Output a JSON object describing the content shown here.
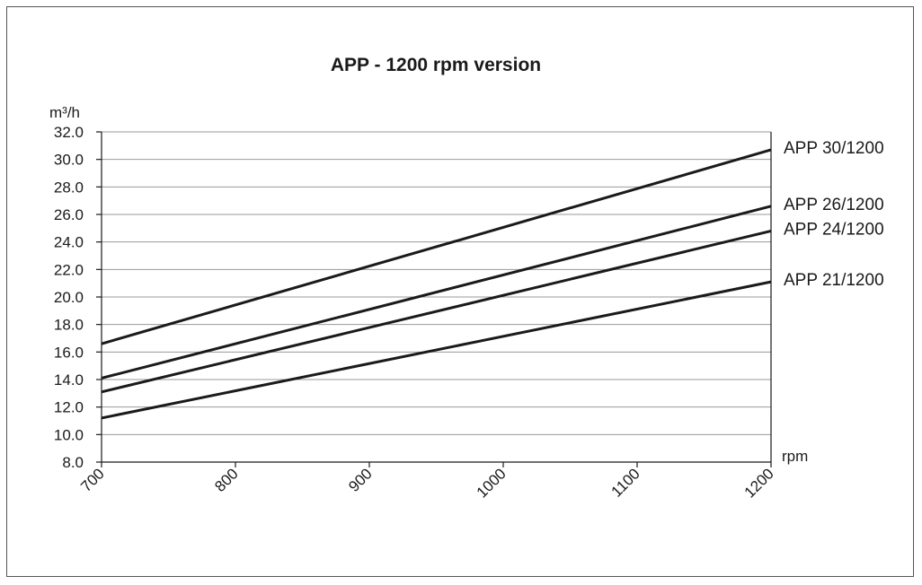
{
  "chart_data": {
    "type": "line",
    "title": "APP - 1200 rpm version",
    "ylabel": "m³/h",
    "xlabel": "rpm",
    "xlim": [
      700,
      1200
    ],
    "ylim": [
      8.0,
      32.0
    ],
    "x_ticks": [
      "700",
      "800",
      "900",
      "1000",
      "1100",
      "1200"
    ],
    "y_ticks": [
      "8.0",
      "10.0",
      "12.0",
      "14.0",
      "16.0",
      "18.0",
      "20.0",
      "22.0",
      "24.0",
      "26.0",
      "28.0",
      "30.0",
      "32.0"
    ],
    "grid": true,
    "series": [
      {
        "name": "APP 30/1200",
        "x": [
          700,
          1200
        ],
        "values": [
          16.6,
          30.7
        ]
      },
      {
        "name": "APP 26/1200",
        "x": [
          700,
          1200
        ],
        "values": [
          14.1,
          26.6
        ]
      },
      {
        "name": "APP 24/1200",
        "x": [
          700,
          1200
        ],
        "values": [
          13.1,
          24.8
        ]
      },
      {
        "name": "APP 21/1200",
        "x": [
          700,
          1200
        ],
        "values": [
          11.2,
          21.1
        ]
      }
    ]
  }
}
